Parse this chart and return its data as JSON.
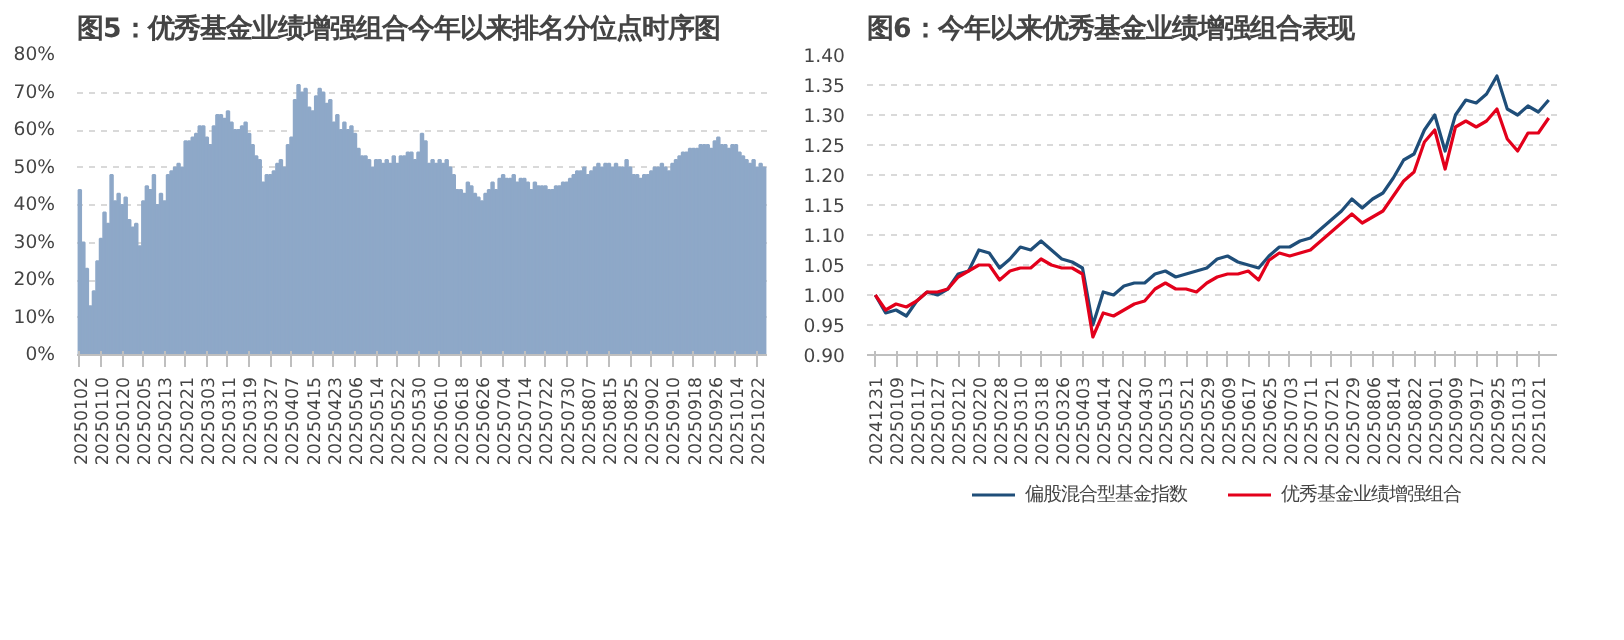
{
  "chart_data": [
    {
      "type": "bar",
      "title": "图5：优秀基金业绩增强组合今年以来排名分位点时序图",
      "categories": [
        "20250102",
        null,
        null,
        null,
        null,
        null,
        "20250110",
        null,
        null,
        null,
        null,
        null,
        "20250120",
        null,
        null,
        null,
        null,
        null,
        "20250205",
        null,
        null,
        null,
        null,
        null,
        "20250213",
        null,
        null,
        null,
        null,
        null,
        "20250221",
        null,
        null,
        null,
        null,
        null,
        "20250303",
        null,
        null,
        null,
        null,
        null,
        "20250311",
        null,
        null,
        null,
        null,
        null,
        "20250319",
        null,
        null,
        null,
        null,
        null,
        "20250327",
        null,
        null,
        null,
        null,
        null,
        "20250407",
        null,
        null,
        null,
        null,
        null,
        "20250415",
        null,
        null,
        null,
        null,
        null,
        "20250423",
        null,
        null,
        null,
        null,
        null,
        "20250506",
        null,
        null,
        null,
        null,
        null,
        "20250514",
        null,
        null,
        null,
        null,
        null,
        "20250522",
        null,
        null,
        null,
        null,
        null,
        "20250530",
        null,
        null,
        null,
        null,
        null,
        "20250610",
        null,
        null,
        null,
        null,
        null,
        "20250618",
        null,
        null,
        null,
        null,
        null,
        "20250626",
        null,
        null,
        null,
        null,
        null,
        "20250704",
        null,
        null,
        null,
        null,
        null,
        "20250714",
        null,
        null,
        null,
        null,
        null,
        "20250722",
        null,
        null,
        null,
        null,
        null,
        "20250730",
        null,
        null,
        null,
        null,
        null,
        "20250807",
        null,
        null,
        null,
        null,
        null,
        "20250815",
        null,
        null,
        null,
        null,
        null,
        "20250825",
        null,
        null,
        null,
        null,
        null,
        "20250902",
        null,
        null,
        null,
        null,
        null,
        "20250910",
        null,
        null,
        null,
        null,
        null,
        "20250918",
        null,
        null,
        null,
        null,
        null,
        "20250926",
        null,
        null,
        null,
        null,
        null,
        "20251014",
        null,
        null,
        null,
        null,
        null,
        "20251022",
        null,
        null
      ],
      "values": [
        44,
        30,
        23,
        13,
        17,
        25,
        31,
        38,
        35,
        48,
        41,
        43,
        40,
        42,
        36,
        34,
        35,
        29,
        41,
        45,
        44,
        48,
        40,
        43,
        41,
        48,
        49,
        50,
        51,
        50,
        57,
        57,
        58,
        59,
        61,
        61,
        58,
        56,
        61,
        64,
        64,
        63,
        65,
        62,
        60,
        60,
        61,
        62,
        59,
        56,
        53,
        52,
        46,
        48,
        48,
        49,
        51,
        52,
        50,
        56,
        58,
        68,
        72,
        70,
        71,
        66,
        65,
        69,
        71,
        70,
        67,
        68,
        62,
        64,
        60,
        62,
        60,
        61,
        59,
        55,
        53,
        53,
        52,
        50,
        52,
        52,
        51,
        52,
        51,
        53,
        51,
        53,
        53,
        54,
        54,
        52,
        54,
        59,
        57,
        51,
        52,
        51,
        52,
        51,
        52,
        50,
        48,
        44,
        44,
        43,
        46,
        45,
        43,
        42,
        41,
        43,
        44,
        46,
        44,
        47,
        48,
        47,
        47,
        48,
        46,
        47,
        47,
        46,
        44,
        46,
        45,
        45,
        45,
        44,
        44,
        45,
        45,
        46,
        46,
        47,
        48,
        49,
        49,
        50,
        48,
        49,
        50,
        51,
        50,
        51,
        51,
        50,
        51,
        50,
        50,
        52,
        50,
        48,
        48,
        47,
        48,
        48,
        49,
        50,
        50,
        51,
        50,
        49,
        51,
        52,
        53,
        54,
        54,
        55,
        55,
        55,
        56,
        56,
        56,
        55,
        57,
        58,
        56,
        56,
        55,
        56,
        56,
        54,
        53,
        52,
        51,
        52,
        50,
        51,
        50
      ],
      "color": "#8ea8c8",
      "ylim": [
        0,
        80
      ],
      "yticks": [
        {
          "value": 0,
          "label": "0%"
        },
        {
          "value": 10,
          "label": "10%"
        },
        {
          "value": 20,
          "label": "20%"
        },
        {
          "value": 30,
          "label": "30%"
        },
        {
          "value": 40,
          "label": "40%"
        },
        {
          "value": 50,
          "label": "50%"
        },
        {
          "value": 60,
          "label": "60%"
        },
        {
          "value": 70,
          "label": "70%"
        },
        {
          "value": 80,
          "label": "80%"
        }
      ],
      "grid": "y"
    },
    {
      "type": "line",
      "title": "图6：今年以来优秀基金业绩增强组合表现",
      "categories": [
        "20241231",
        null,
        "20250109",
        null,
        "20250117",
        null,
        "20250127",
        null,
        "20250212",
        null,
        "20250220",
        null,
        "20250228",
        null,
        "20250310",
        null,
        "20250318",
        null,
        "20250326",
        null,
        "20250403",
        null,
        "20250414",
        null,
        "20250422",
        null,
        "20250430",
        null,
        "20250513",
        null,
        "20250521",
        null,
        "20250529",
        null,
        "20250609",
        null,
        "20250617",
        null,
        "20250625",
        null,
        "20250703",
        null,
        "20250711",
        null,
        "20250721",
        null,
        "20250729",
        null,
        "20250806",
        null,
        "20250814",
        null,
        "20250822",
        null,
        "20250901",
        null,
        "20250909",
        null,
        "20250917",
        null,
        "20250925",
        null,
        "20251013",
        null,
        "20251021",
        null
      ],
      "series": [
        {
          "name": "偏股混合型基金指数",
          "color": "#1f4e79",
          "values": [
            1.0,
            0.97,
            0.975,
            0.965,
            0.99,
            1.005,
            1.0,
            1.01,
            1.035,
            1.04,
            1.075,
            1.07,
            1.045,
            1.06,
            1.08,
            1.075,
            1.09,
            1.075,
            1.06,
            1.055,
            1.045,
            0.95,
            1.005,
            1.0,
            1.015,
            1.02,
            1.02,
            1.035,
            1.04,
            1.03,
            1.035,
            1.04,
            1.045,
            1.06,
            1.065,
            1.055,
            1.05,
            1.045,
            1.065,
            1.08,
            1.08,
            1.09,
            1.095,
            1.11,
            1.125,
            1.14,
            1.16,
            1.145,
            1.16,
            1.17,
            1.195,
            1.225,
            1.235,
            1.275,
            1.3,
            1.24,
            1.3,
            1.325,
            1.32,
            1.335,
            1.365,
            1.31,
            1.3,
            1.315,
            1.305,
            1.325
          ]
        },
        {
          "name": "优秀基金业绩增强组合",
          "color": "#e3001b",
          "values": [
            1.0,
            0.975,
            0.985,
            0.98,
            0.99,
            1.005,
            1.005,
            1.01,
            1.03,
            1.04,
            1.05,
            1.05,
            1.025,
            1.04,
            1.045,
            1.045,
            1.06,
            1.05,
            1.045,
            1.045,
            1.035,
            0.93,
            0.97,
            0.965,
            0.975,
            0.985,
            0.99,
            1.01,
            1.02,
            1.01,
            1.01,
            1.005,
            1.02,
            1.03,
            1.035,
            1.035,
            1.04,
            1.025,
            1.058,
            1.07,
            1.065,
            1.07,
            1.075,
            1.09,
            1.105,
            1.12,
            1.135,
            1.12,
            1.13,
            1.14,
            1.165,
            1.19,
            1.205,
            1.255,
            1.275,
            1.21,
            1.28,
            1.29,
            1.28,
            1.29,
            1.31,
            1.26,
            1.24,
            1.27,
            1.27,
            1.295
          ]
        }
      ],
      "ylim": [
        0.9,
        1.4
      ],
      "yticks": [
        {
          "value": 0.9,
          "label": "0.90"
        },
        {
          "value": 0.95,
          "label": "0.95"
        },
        {
          "value": 1.0,
          "label": "1.00"
        },
        {
          "value": 1.05,
          "label": "1.05"
        },
        {
          "value": 1.1,
          "label": "1.10"
        },
        {
          "value": 1.15,
          "label": "1.15"
        },
        {
          "value": 1.2,
          "label": "1.20"
        },
        {
          "value": 1.25,
          "label": "1.25"
        },
        {
          "value": 1.3,
          "label": "1.30"
        },
        {
          "value": 1.35,
          "label": "1.35"
        },
        {
          "value": 1.4,
          "label": "1.40"
        }
      ],
      "grid": "y",
      "legend": "bottom",
      "marker": "none",
      "line_style": "solid"
    }
  ]
}
